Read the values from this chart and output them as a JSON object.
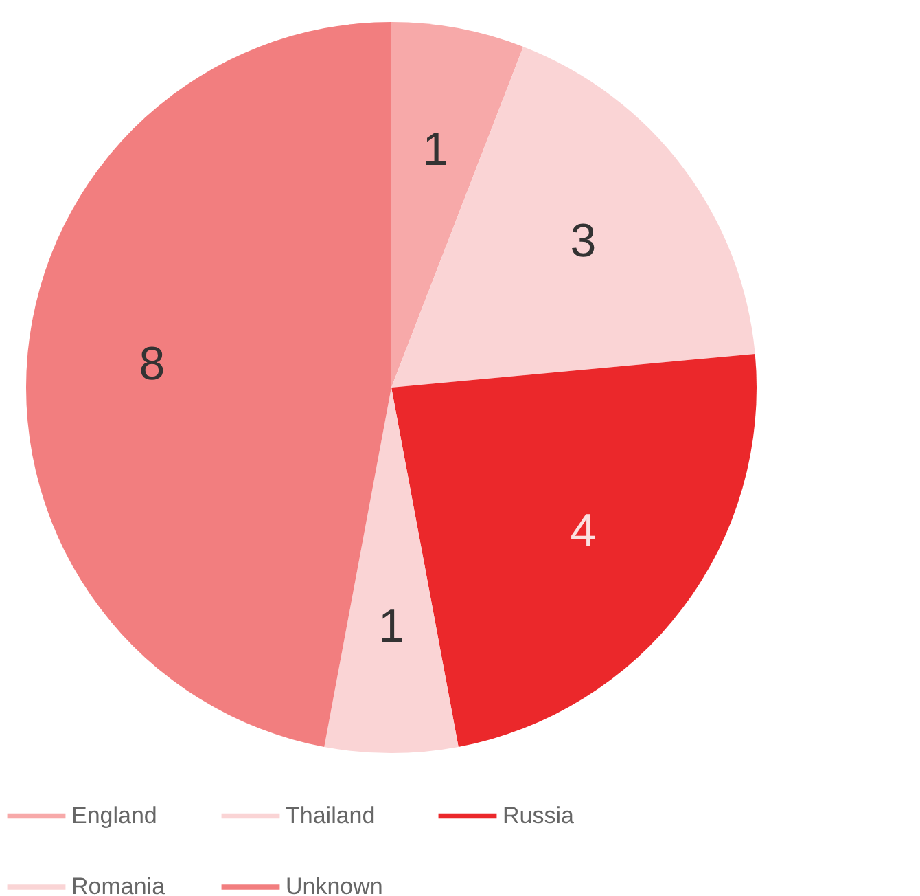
{
  "chart_data": {
    "type": "pie",
    "categories": [
      "England",
      "Thailand",
      "Russia",
      "Romania",
      "Unknown"
    ],
    "values": [
      1,
      3,
      4,
      1,
      8
    ],
    "colors": [
      "#f7a9a9",
      "#fad4d5",
      "#eb282b",
      "#fad4d5",
      "#f27e7f"
    ],
    "data_labels": true,
    "legend": "bottom"
  }
}
